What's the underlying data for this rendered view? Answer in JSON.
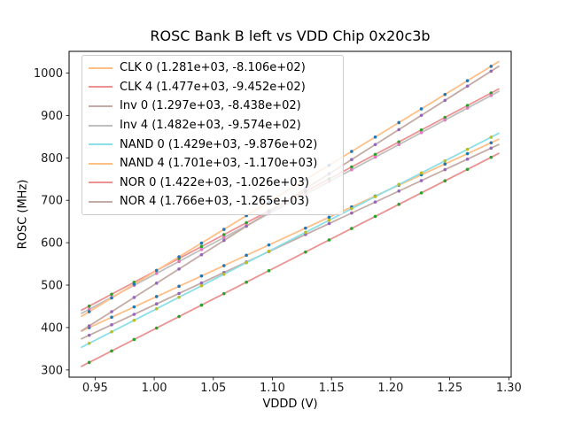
{
  "figure": {
    "background": "#ffffff"
  },
  "chart_data": {
    "type": "scatter_with_linear_fits",
    "title": "ROSC Bank B left vs VDD Chip 0x20c3b",
    "xlabel": "VDDD (V)",
    "ylabel": "ROSC (MHz)",
    "xlim": [
      0.928,
      1.302
    ],
    "ylim": [
      283,
      1051
    ],
    "grid": false,
    "legend_position": "upper left",
    "x_ticks": [
      0.95,
      1.0,
      1.05,
      1.1,
      1.15,
      1.2,
      1.25,
      1.3
    ],
    "x_tick_labels": [
      "0.95",
      "1.00",
      "1.05",
      "1.10",
      "1.15",
      "1.20",
      "1.25",
      "1.30"
    ],
    "y_ticks": [
      300,
      400,
      500,
      600,
      700,
      800,
      900,
      1000
    ],
    "y_tick_labels": [
      "300",
      "400",
      "500",
      "600",
      "700",
      "800",
      "900",
      "1000"
    ],
    "x_values": [
      0.945,
      0.964,
      0.983,
      1.002,
      1.021,
      1.04,
      1.059,
      1.078,
      1.097,
      1.128,
      1.148,
      1.167,
      1.187,
      1.207,
      1.226,
      1.246,
      1.265,
      1.285
    ],
    "fit_x_range": [
      0.938,
      1.292
    ],
    "series": [
      {
        "name": "CLK 0",
        "label": "CLK 0 (1.281e+03, -8.106e+02)",
        "slope": 1281.0,
        "intercept": -810.6,
        "y_first": 399.9,
        "y_last": 835.5,
        "line_color": "#ffbf87",
        "marker_color": "#1f77b4"
      },
      {
        "name": "CLK 4",
        "label": "CLK 4 (1.477e+03, -9.452e+02)",
        "slope": 1477.0,
        "intercept": -945.2,
        "y_first": 450.6,
        "y_last": 952.7,
        "line_color": "#eb9393",
        "marker_color": "#2ca02c"
      },
      {
        "name": "Inv 0",
        "label": "Inv 0 (1.297e+03, -8.438e+02)",
        "slope": 1297.0,
        "intercept": -843.8,
        "y_first": 381.9,
        "y_last": 822.8,
        "line_color": "#c5aba5",
        "marker_color": "#9467bd"
      },
      {
        "name": "Inv 4",
        "label": "Inv 4 (1.482e+03, -9.574e+02)",
        "slope": 1482.0,
        "intercept": -957.4,
        "y_first": 443.1,
        "y_last": 947.0,
        "line_color": "#bfbfbf",
        "marker_color": "#e377c2"
      },
      {
        "name": "NAND 0",
        "label": "NAND 0 (1.429e+03, -9.876e+02)",
        "slope": 1429.0,
        "intercept": -987.6,
        "y_first": 362.8,
        "y_last": 848.7,
        "line_color": "#8bdfe7",
        "marker_color": "#bcbd22"
      },
      {
        "name": "NAND 4",
        "label": "NAND 4 (1.701e+03, -1.170e+03)",
        "slope": 1701.0,
        "intercept": -1170.0,
        "y_first": 437.4,
        "y_last": 1015.8,
        "line_color": "#ffbf87",
        "marker_color": "#1f77b4"
      },
      {
        "name": "NOR 0",
        "label": "NOR 0 (1.422e+03, -1.026e+03)",
        "slope": 1422.0,
        "intercept": -1026.0,
        "y_first": 317.8,
        "y_last": 801.3,
        "line_color": "#eb9393",
        "marker_color": "#2ca02c"
      },
      {
        "name": "NOR 4",
        "label": "NOR 4 (1.766e+03, -1.265e+03)",
        "slope": 1766.0,
        "intercept": -1265.0,
        "y_first": 403.9,
        "y_last": 1004.3,
        "line_color": "#c5aba5",
        "marker_color": "#9467bd"
      }
    ]
  },
  "style_colors": {
    "axis_spine": "#000000",
    "tick_text": "#1a1a1a",
    "legend_border": "#cccccc"
  }
}
